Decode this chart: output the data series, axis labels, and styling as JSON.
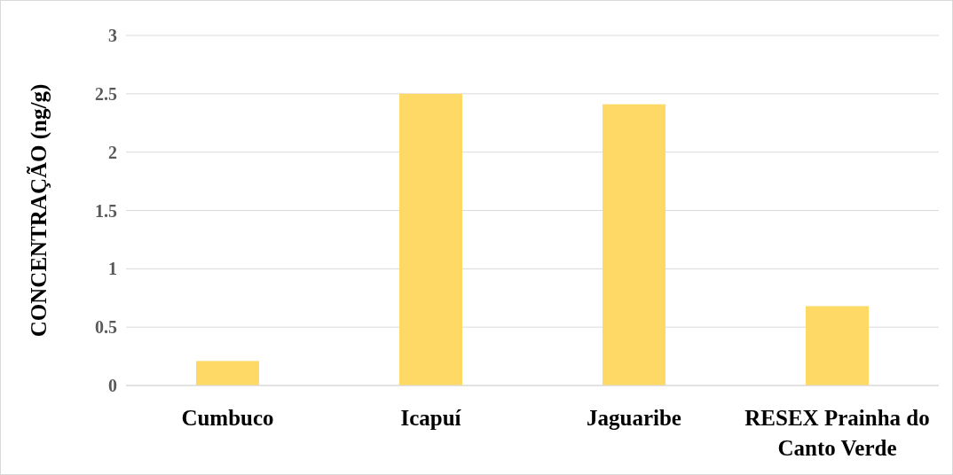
{
  "chart_data": {
    "type": "bar",
    "ylabel": "CONCENTRAÇÃO (ng/g)",
    "categories": [
      "Cumbuco",
      "Icapuí",
      "Jaguaribe",
      "RESEX Prainha do Canto Verde"
    ],
    "values": [
      0.21,
      2.5,
      2.41,
      0.68
    ],
    "color": "#ffd966",
    "ylim": [
      0,
      3
    ],
    "yticks": [
      0,
      0.5,
      1,
      1.5,
      2,
      2.5,
      3
    ],
    "grid": "y"
  }
}
